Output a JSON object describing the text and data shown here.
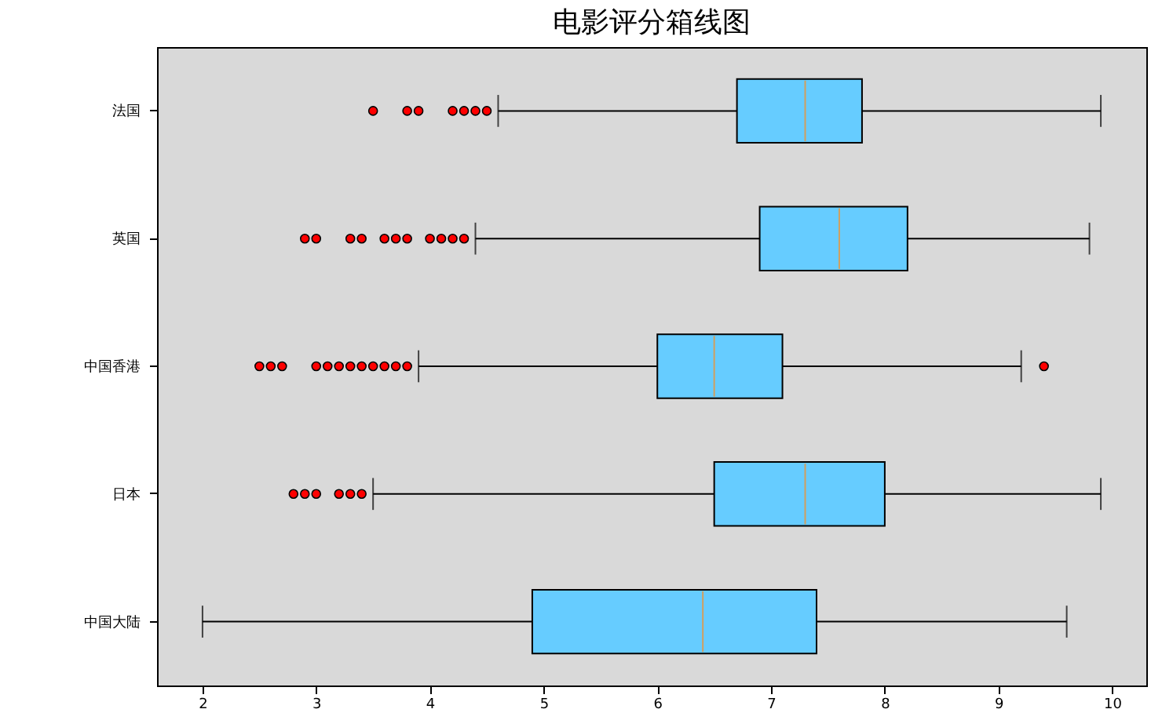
{
  "chart_data": {
    "type": "box",
    "title": "电影评分箱线图",
    "orientation": "horizontal",
    "categories": [
      "法国",
      "英国",
      "中国香港",
      "日本",
      "中国大陆"
    ],
    "series": [
      {
        "color": "#66ccff",
        "boxes": [
          {
            "low": 4.6,
            "q1": 6.7,
            "median": 7.3,
            "q3": 7.8,
            "high": 9.9,
            "outliers": [
              3.5,
              3.8,
              3.9,
              4.2,
              4.3,
              4.4,
              4.5
            ]
          },
          {
            "low": 4.4,
            "q1": 6.9,
            "median": 7.6,
            "q3": 8.2,
            "high": 9.8,
            "outliers": [
              2.9,
              3.0,
              3.3,
              3.4,
              3.6,
              3.7,
              3.8,
              4.0,
              4.1,
              4.2,
              4.3
            ]
          },
          {
            "low": 3.9,
            "q1": 6.0,
            "median": 6.5,
            "q3": 7.1,
            "high": 9.2,
            "outliers": [
              2.5,
              2.6,
              2.7,
              3.0,
              3.1,
              3.2,
              3.3,
              3.4,
              3.5,
              3.6,
              3.7,
              3.8,
              9.4
            ]
          },
          {
            "low": 3.5,
            "q1": 6.5,
            "median": 7.3,
            "q3": 8.0,
            "high": 9.9,
            "outliers": [
              2.8,
              2.9,
              3.0,
              3.2,
              3.3,
              3.4
            ]
          },
          {
            "low": 2.0,
            "q1": 4.9,
            "median": 6.4,
            "q3": 7.4,
            "high": 9.6
          }
        ]
      }
    ],
    "xlim": [
      1.6,
      10.3
    ],
    "xticks": [
      2,
      3,
      4,
      5,
      6,
      7,
      8,
      9,
      10
    ]
  }
}
